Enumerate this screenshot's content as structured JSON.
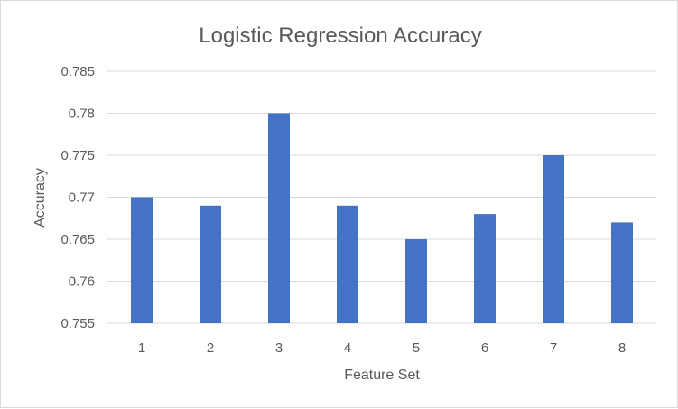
{
  "chart_data": {
    "type": "bar",
    "title": "Logistic Regression Accuracy",
    "xlabel": "Feature Set",
    "ylabel": "Accuracy",
    "categories": [
      "1",
      "2",
      "3",
      "4",
      "5",
      "6",
      "7",
      "8"
    ],
    "values": [
      0.77,
      0.769,
      0.78,
      0.769,
      0.765,
      0.768,
      0.775,
      0.767
    ],
    "ylim": [
      0.755,
      0.785
    ],
    "yticks": [
      "0.755",
      "0.76",
      "0.765",
      "0.77",
      "0.775",
      "0.78",
      "0.785"
    ],
    "grid": true,
    "legend": "none",
    "bar_color": "#4472c4"
  }
}
